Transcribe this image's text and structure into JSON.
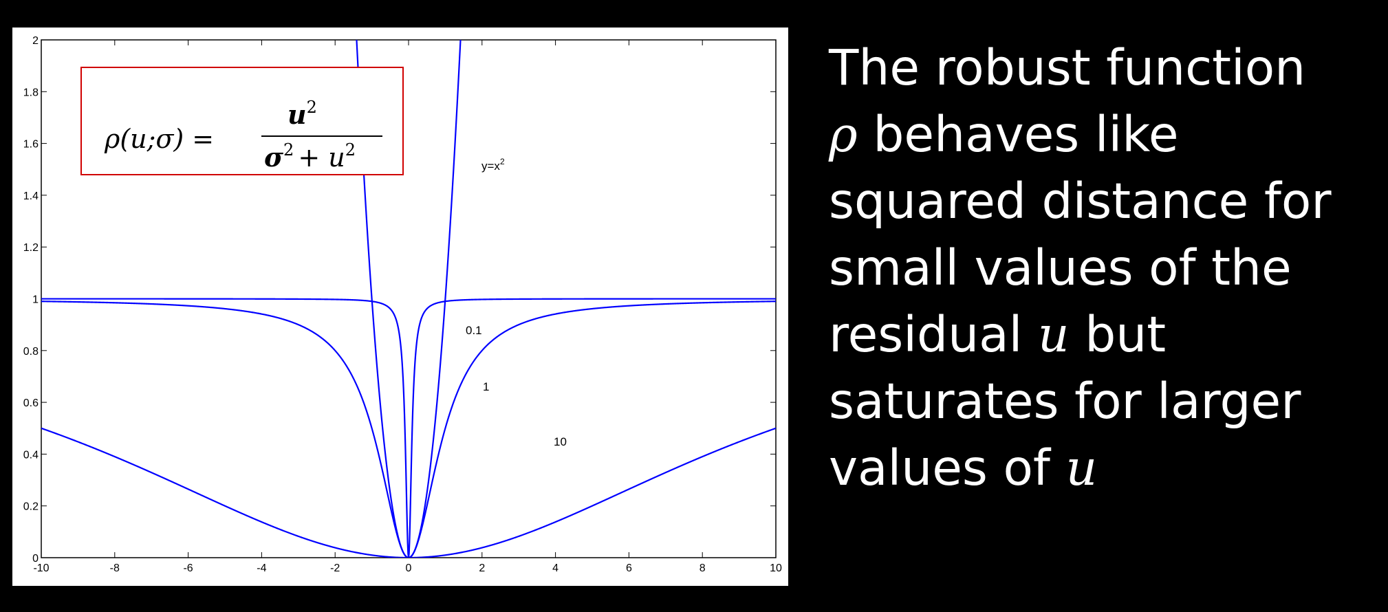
{
  "chart_data": {
    "type": "line",
    "x_range": [
      -10,
      10
    ],
    "ylim": [
      0,
      2
    ],
    "x_ticks": [
      "-10",
      "-8",
      "-6",
      "-4",
      "-2",
      "0",
      "2",
      "4",
      "6",
      "8",
      "10"
    ],
    "y_ticks": [
      "0",
      "0.2",
      "0.4",
      "0.6",
      "0.8",
      "1",
      "1.2",
      "1.4",
      "1.6",
      "1.8",
      "2"
    ],
    "grid": false,
    "line_color": "#0000FF",
    "series": [
      {
        "name": "y=x²",
        "function": "u^2",
        "sigma": null
      },
      {
        "name": "0.1",
        "function": "u^2/(sigma^2+u^2)",
        "sigma": 0.1
      },
      {
        "name": "1",
        "function": "u^2/(sigma^2+u^2)",
        "sigma": 1
      },
      {
        "name": "10",
        "function": "u^2/(sigma^2+u^2)",
        "sigma": 10
      }
    ],
    "annotations": {
      "parabola": "y=x",
      "parabola_exp": "2",
      "s01": "0.1",
      "s1": "1",
      "s10": "10"
    },
    "formula": {
      "lhs": "ρ(u;σ) =",
      "numerator": "u",
      "numerator_exp": "2",
      "den_sigma": "σ",
      "den_exp": "2",
      "den_plus": "+ u",
      "den_u_exp": "2",
      "box_color": "#D00000"
    }
  },
  "caption": {
    "line1": "The robust function",
    "rho": "ρ",
    "line2": " behaves like",
    "line3": "squared distance for",
    "line4": "small values of the",
    "line5a": "residual ",
    "u1": "u",
    "line5b": " but",
    "line6": "saturates for larger",
    "line7a": "values of ",
    "u2": "u"
  }
}
